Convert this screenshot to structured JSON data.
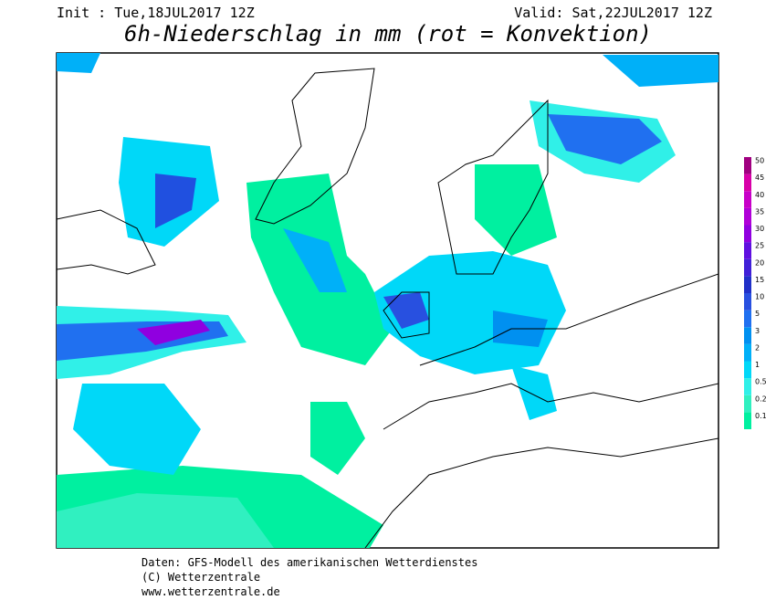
{
  "header": {
    "init": "Init : Tue,18JUL2017 12Z",
    "valid": "Valid: Sat,22JUL2017 12Z",
    "title": "6h-Niederschlag in mm (rot = Konvektion)"
  },
  "legend": [
    {
      "value": 0.1,
      "color": "#00f0a0"
    },
    {
      "value": 0.2,
      "color": "#30f0c0"
    },
    {
      "value": 0.5,
      "color": "#30f0e8"
    },
    {
      "value": 1,
      "color": "#00d8f8"
    },
    {
      "value": 2,
      "color": "#00b0f8"
    },
    {
      "value": 3,
      "color": "#0090f0"
    },
    {
      "value": 5,
      "color": "#2070f0"
    },
    {
      "value": 10,
      "color": "#2850e0"
    },
    {
      "value": 15,
      "color": "#2030c8"
    },
    {
      "value": 20,
      "color": "#4020d8"
    },
    {
      "value": 25,
      "color": "#6010e0"
    },
    {
      "value": 30,
      "color": "#9000e0"
    },
    {
      "value": 35,
      "color": "#b000d8"
    },
    {
      "value": 40,
      "color": "#c800c8"
    },
    {
      "value": 45,
      "color": "#d800a8"
    },
    {
      "value": 50,
      "color": "#a00080"
    }
  ],
  "footer": [
    "Daten: GFS-Modell des amerikanischen Wetterdienstes",
    "(C) Wetterzentrale",
    "www.wetterzentrale.de"
  ]
}
